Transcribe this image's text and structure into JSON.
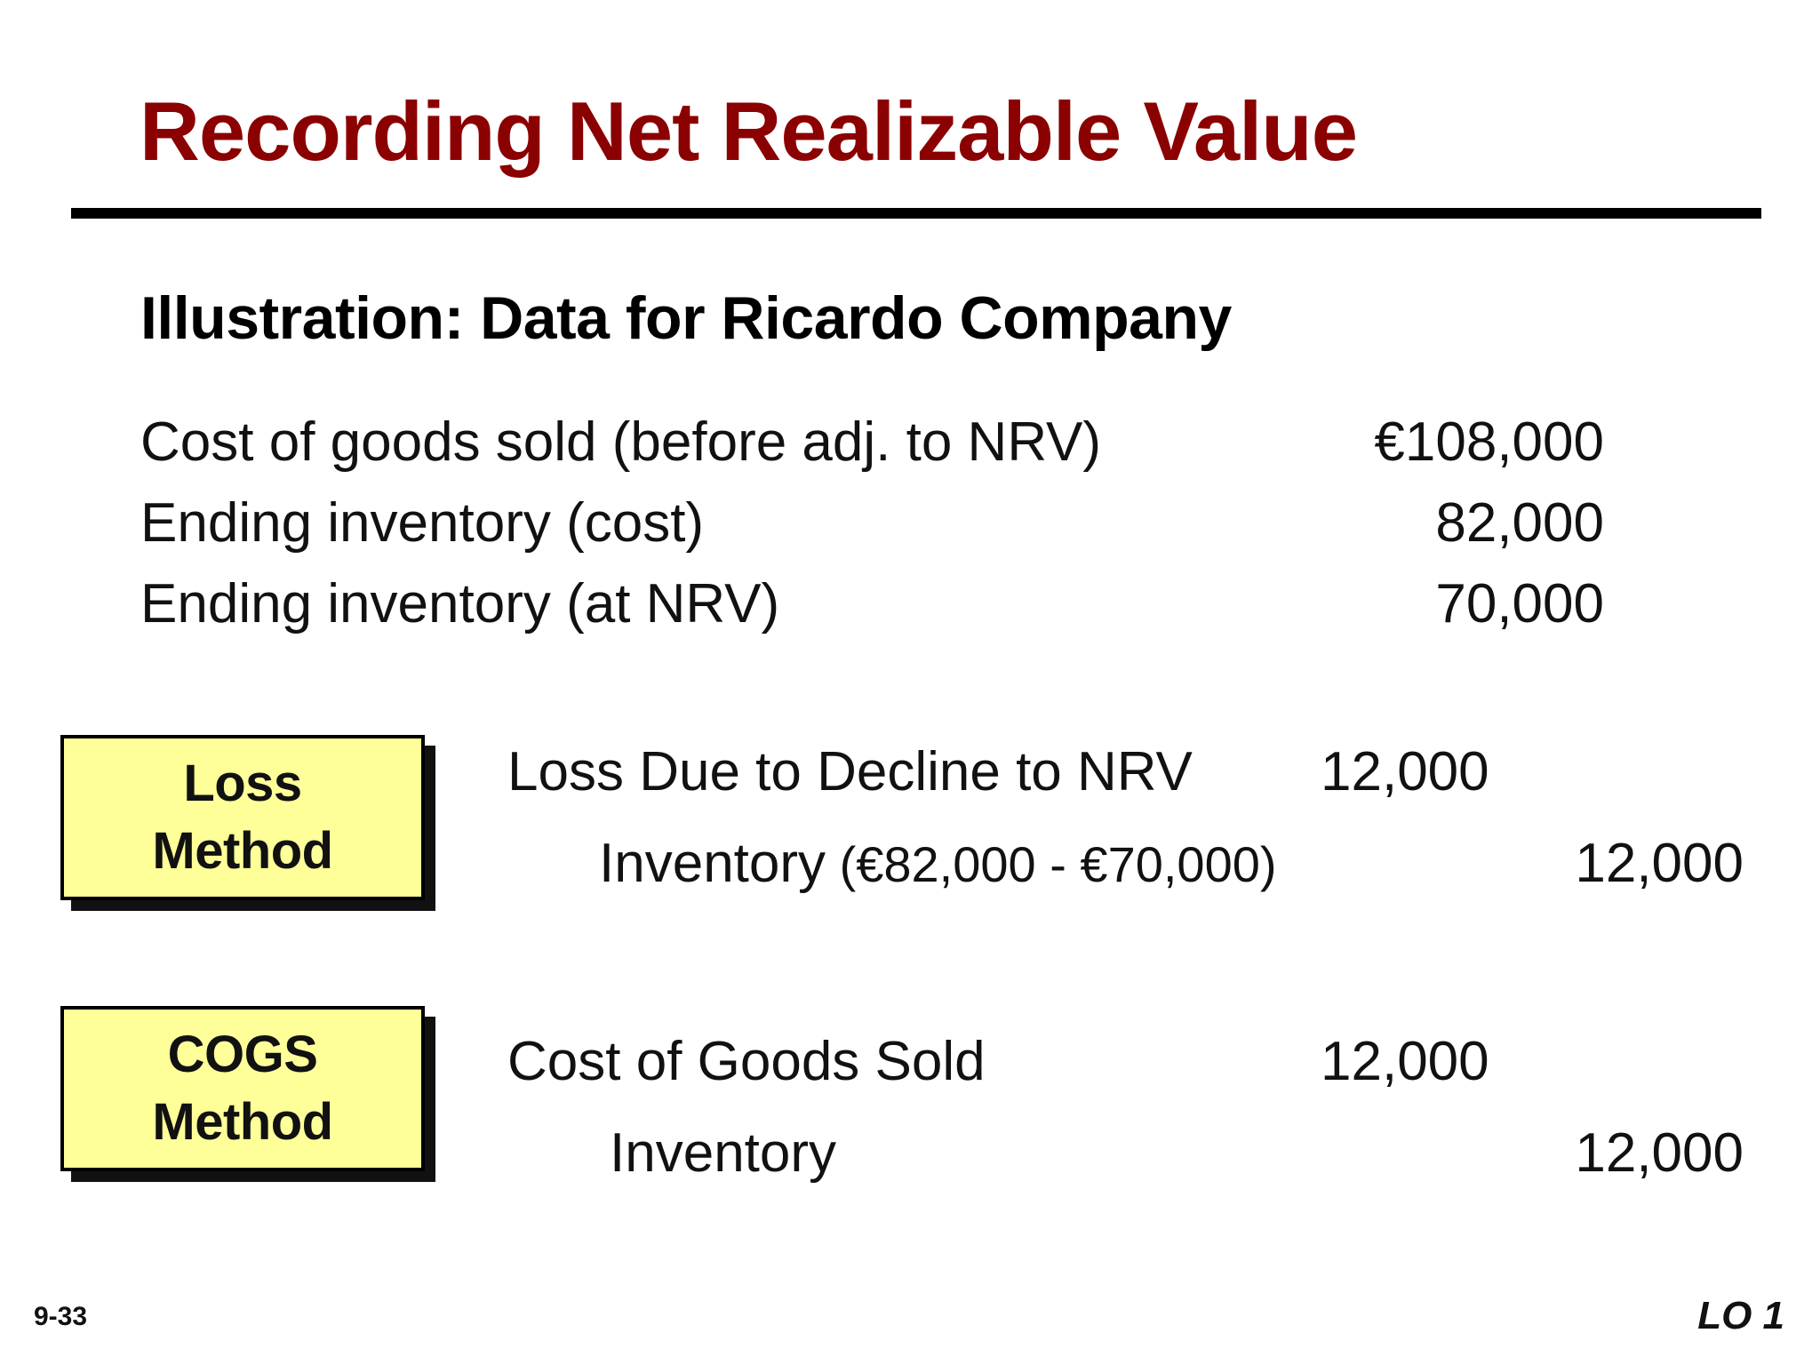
{
  "title": "Recording Net Realizable Value",
  "subtitle": "Illustration: Data for Ricardo Company",
  "data_rows": [
    {
      "label": "Cost of goods sold (before adj. to NRV)",
      "value": "€108,000"
    },
    {
      "label": "Ending inventory (cost)",
      "value": "82,000"
    },
    {
      "label": "Ending inventory (at NRV)",
      "value": "70,000"
    }
  ],
  "loss_method": {
    "box_line1": "Loss",
    "box_line2": "Method",
    "debit_account": "Loss Due to Decline to NRV",
    "debit_amount": "12,000",
    "credit_account": "Inventory",
    "credit_detail": " (€82,000 - €70,000)",
    "credit_amount": "12,000"
  },
  "cogs_method": {
    "box_line1": "COGS",
    "box_line2": "Method",
    "debit_account": "Cost of Goods Sold",
    "debit_amount": "12,000",
    "credit_account": "Inventory",
    "credit_amount": "12,000"
  },
  "footer": {
    "slide_number": "9-33",
    "learning_objective": "LO 1"
  },
  "colors": {
    "title": "#8b0000",
    "box_fill": "#ffff99",
    "rule": "#000000"
  }
}
